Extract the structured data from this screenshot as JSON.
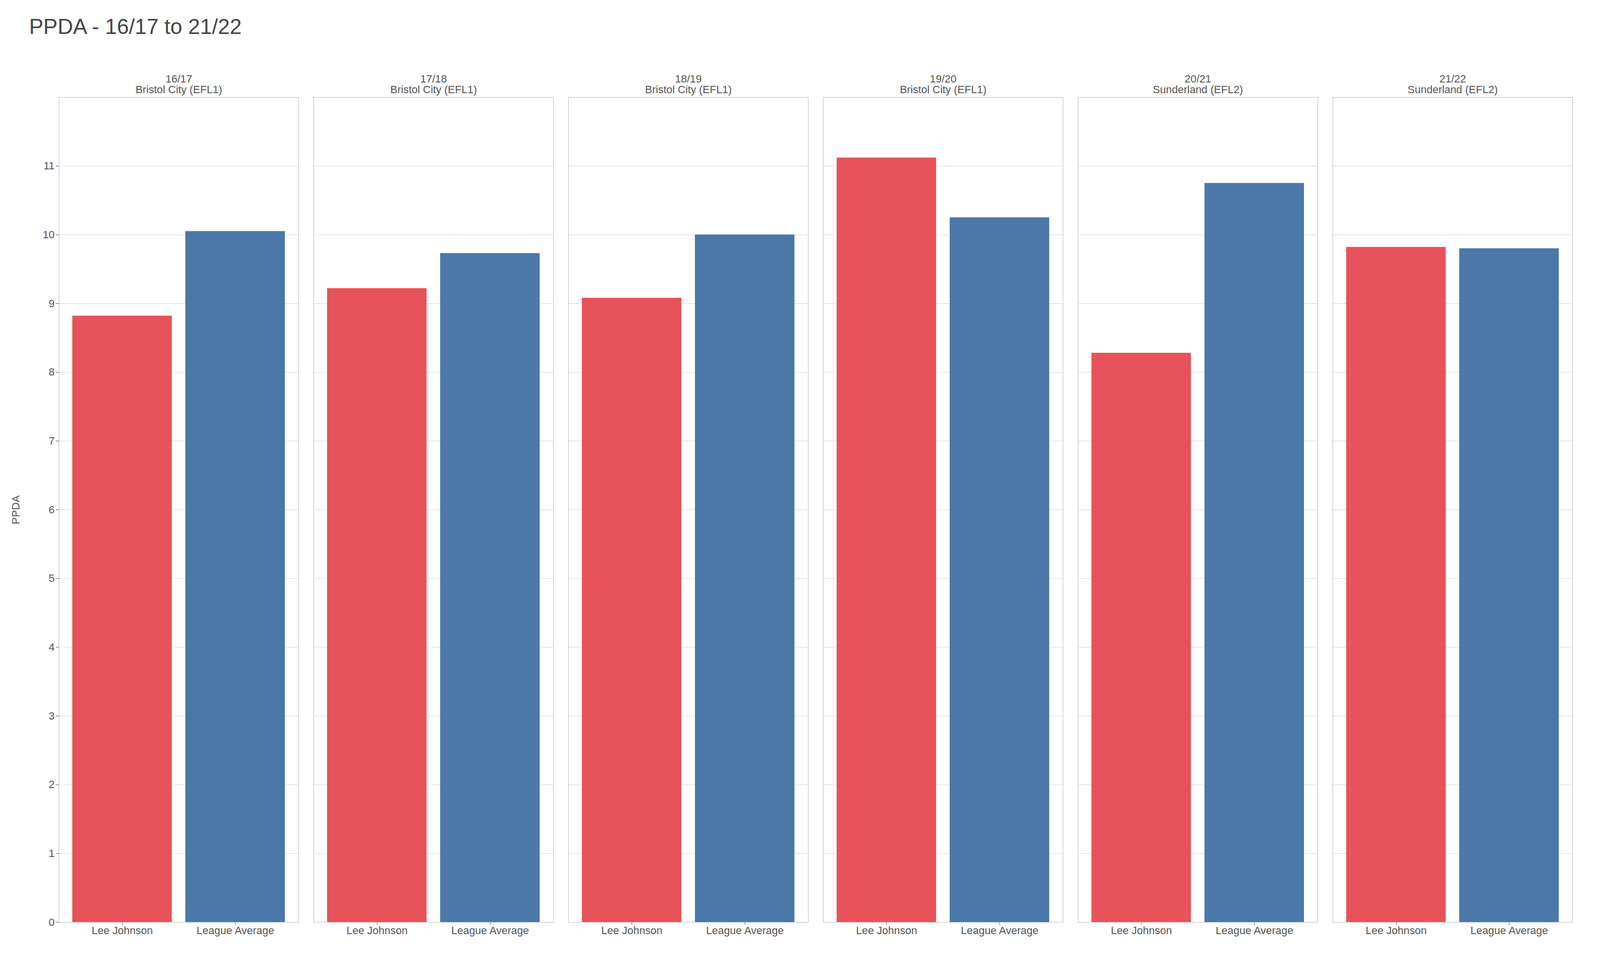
{
  "chart_data": {
    "type": "bar",
    "title": "PPDA - 16/17 to 21/22",
    "ylabel": "PPDA",
    "categories": [
      "16/17",
      "17/18",
      "18/19",
      "19/20",
      "20/21",
      "21/22"
    ],
    "teams": [
      "Bristol City (EFL1)",
      "Bristol City (EFL1)",
      "Bristol City (EFL1)",
      "Bristol City (EFL1)",
      "Sunderland (EFL2)",
      "Sunderland (EFL2)"
    ],
    "series": [
      {
        "name": "Lee Johnson",
        "color": "#E8525A",
        "values": [
          8.82,
          9.22,
          9.08,
          11.12,
          8.28,
          9.82
        ]
      },
      {
        "name": "League Average",
        "color": "#4B78A8",
        "values": [
          10.05,
          9.73,
          10.0,
          10.25,
          10.75,
          9.8
        ]
      }
    ],
    "ylim": [
      0,
      12
    ],
    "yticks": [
      0,
      1,
      2,
      3,
      4,
      5,
      6,
      7,
      8,
      9,
      10,
      11
    ],
    "grid": true
  }
}
